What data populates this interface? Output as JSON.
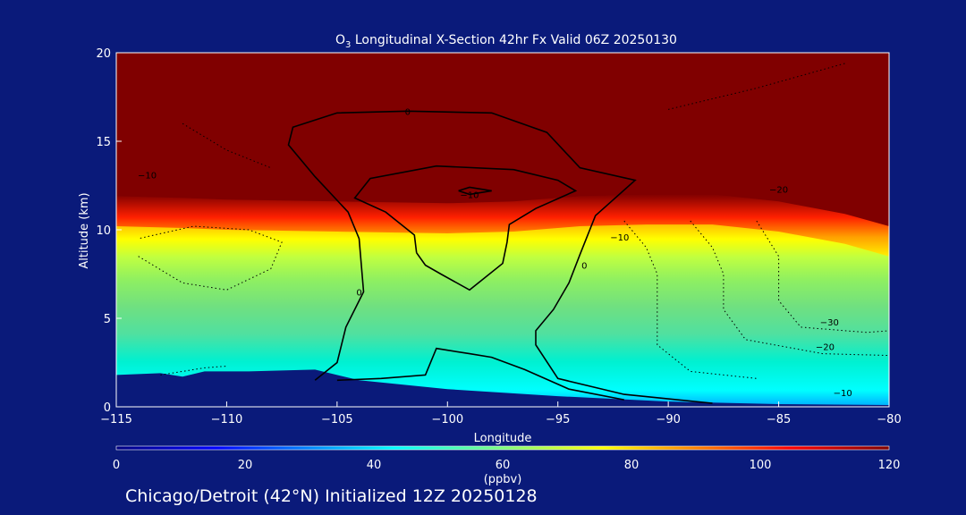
{
  "chart_data": {
    "type": "heatmap",
    "title": "O3 Longitudinal X-Section 42hr  Fx Valid 06Z 20250130",
    "title_parts": {
      "prefix": "O",
      "subscript": "3",
      "rest": " Longitudinal X-Section 42hr  Fx Valid 06Z 20250130"
    },
    "xlabel": "Longitude",
    "ylabel": "Altitude (km)",
    "xlim": [
      -115,
      -80
    ],
    "ylim": [
      0,
      20
    ],
    "x_ticks": [
      -115,
      -110,
      -105,
      -100,
      -95,
      -90,
      -85,
      -80
    ],
    "x_tick_labels": [
      "−115",
      "−110",
      "−105",
      "−100",
      "−95",
      "−90",
      "−85",
      "−80"
    ],
    "y_ticks": [
      0,
      5,
      10,
      15,
      20
    ],
    "y_tick_labels": [
      "0",
      "5",
      "10",
      "15",
      "20"
    ],
    "colorbar": {
      "label": "(ppbv)",
      "range": [
        0,
        120
      ],
      "ticks": [
        0,
        20,
        40,
        60,
        80,
        100,
        120
      ],
      "tick_labels": [
        "0",
        "20",
        "40",
        "60",
        "80",
        "100",
        "120"
      ]
    },
    "terrain": [
      [
        -115,
        1.8
      ],
      [
        -113,
        1.9
      ],
      [
        -112,
        1.7
      ],
      [
        -111,
        2.0
      ],
      [
        -109,
        2.0
      ],
      [
        -106,
        2.1
      ],
      [
        -104,
        1.5
      ],
      [
        -100,
        1.0
      ],
      [
        -95,
        0.6
      ],
      [
        -90,
        0.3
      ],
      [
        -85,
        0.15
      ],
      [
        -80,
        0.1
      ]
    ],
    "tropopause_km": [
      [
        -115,
        11.3
      ],
      [
        -112,
        11.2
      ],
      [
        -110,
        11.1
      ],
      [
        -105,
        11.0
      ],
      [
        -100,
        10.9
      ],
      [
        -97,
        11.0
      ],
      [
        -94,
        11.3
      ],
      [
        -91,
        11.4
      ],
      [
        -88,
        11.4
      ],
      [
        -85,
        11.0
      ],
      [
        -82,
        10.3
      ],
      [
        -80,
        9.6
      ]
    ],
    "contour_labels": [
      {
        "text": "0",
        "lon": -101.8,
        "lat": 16.7
      },
      {
        "text": "−10",
        "lon": -99.0,
        "lat": 12.0
      },
      {
        "text": "−10",
        "lon": -113.6,
        "lat": 13.1
      },
      {
        "text": "−10",
        "lon": -92.2,
        "lat": 9.6
      },
      {
        "text": "0",
        "lon": -104.0,
        "lat": 6.5
      },
      {
        "text": "0",
        "lon": -93.8,
        "lat": 8.0
      },
      {
        "text": "−20",
        "lon": -85.0,
        "lat": 12.3
      },
      {
        "text": "−30",
        "lon": -82.7,
        "lat": 4.8
      },
      {
        "text": "−20",
        "lon": -82.9,
        "lat": 3.4
      },
      {
        "text": "−10",
        "lon": -82.1,
        "lat": 0.8
      }
    ]
  },
  "footer": "Chicago/Detroit (42°N) Initialized 12Z 20250128",
  "colors": {
    "background": "#0a1a7a",
    "text": "#ffffff"
  }
}
